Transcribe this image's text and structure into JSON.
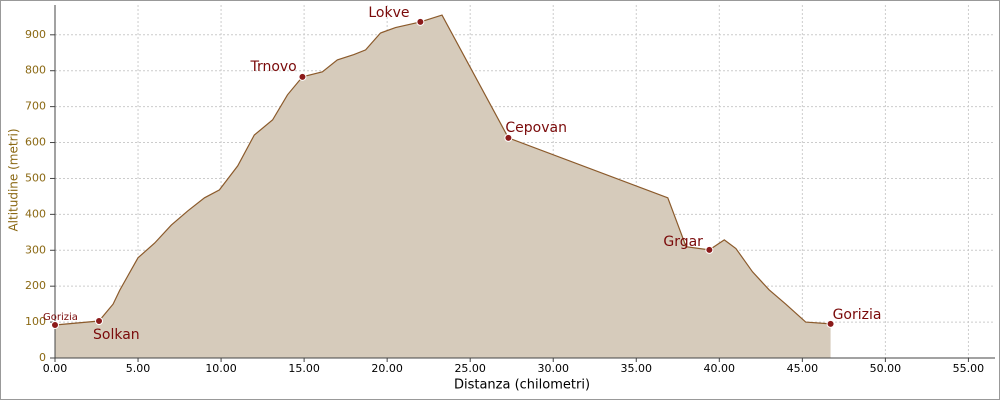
{
  "chart_data": {
    "type": "area",
    "x_label": "Distanza (chilometri)",
    "y_label": "Altitudine (metri)",
    "x": [
      0,
      2.65,
      3.5,
      3.9,
      5,
      6,
      7,
      8,
      9,
      9.9,
      11,
      12,
      13.1,
      14,
      14.9,
      16.1,
      17,
      18,
      18.7,
      19.6,
      20.5,
      22,
      23.3,
      27.3,
      36.9,
      38,
      39.4,
      40.3,
      41,
      42,
      43,
      44,
      45.2,
      46.7
    ],
    "values": [
      92,
      103,
      150,
      189,
      279,
      320,
      370,
      410,
      446,
      468,
      535,
      621,
      663,
      733,
      783,
      797,
      830,
      845,
      858,
      905,
      920,
      936,
      955,
      613,
      446,
      310,
      301,
      329,
      305,
      240,
      190,
      150,
      100,
      95
    ],
    "fill_color": "#d6cbbb",
    "line_color": "#8b5a2b",
    "waypoints": [
      {
        "name": "Gorizia",
        "x": 0,
        "y": 92
      },
      {
        "name": "Solkan",
        "x": 2.65,
        "y": 103
      },
      {
        "name": "Trnovo",
        "x": 14.9,
        "y": 783
      },
      {
        "name": "Lokve",
        "x": 22,
        "y": 936
      },
      {
        "name": "Cepovan",
        "x": 27.3,
        "y": 613
      },
      {
        "name": "Grgar",
        "x": 39.4,
        "y": 301
      },
      {
        "name": "Gorizia",
        "x": 46.7,
        "y": 95
      }
    ],
    "marker_color": "#8b1a1a",
    "xlim": [
      0,
      56.6
    ],
    "ylim": [
      0,
      983
    ],
    "xticks": [
      {
        "value": 0,
        "label": "0.00"
      },
      {
        "value": 5,
        "label": "5.00"
      },
      {
        "value": 10,
        "label": "10.00"
      },
      {
        "value": 15,
        "label": "15.00"
      },
      {
        "value": 20,
        "label": "20.00"
      },
      {
        "value": 25,
        "label": "25.00"
      },
      {
        "value": 30,
        "label": "30.00"
      },
      {
        "value": 35,
        "label": "35.00"
      },
      {
        "value": 40,
        "label": "40.00"
      },
      {
        "value": 45,
        "label": "45.00"
      },
      {
        "value": 50,
        "label": "50.00"
      },
      {
        "value": 55,
        "label": "55.00"
      }
    ],
    "yticks": [
      0,
      100,
      200,
      300,
      400,
      500,
      600,
      700,
      800,
      900
    ],
    "grid": true
  }
}
